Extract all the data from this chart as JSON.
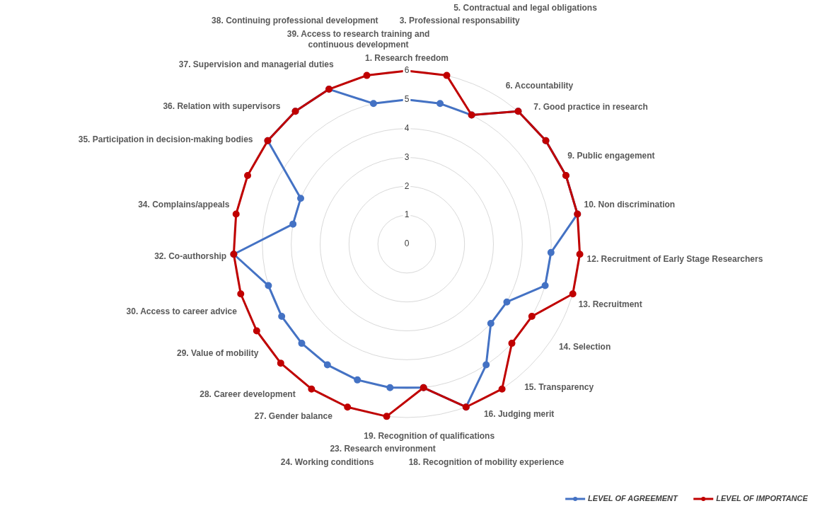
{
  "chart_data": {
    "type": "radar",
    "categories": [
      "1. Research freedom",
      "3. Professional responsability",
      "5. Contractual and legal obligations",
      "6. Accountability",
      "7. Good practice in research",
      "9. Public engagement",
      "10. Non discrimination",
      "12. Recruitment of Early Stage Researchers",
      "13. Recruitment",
      "14. Selection",
      "15. Transparency",
      "16. Judging merit",
      "18. Recognition of mobility experience",
      "19. Recognition of qualifications",
      "23. Research environment",
      "24. Working conditions",
      "27. Gender balance",
      "28. Career development",
      "29. Value of mobility",
      "30. Access to career advice",
      "32. Co-authorship",
      "34. Complains/appeals",
      "35. Participation in decision-making bodies",
      "36. Relation with supervisors",
      "37. Supervision and managerial duties",
      "38. Continuing professional development",
      "39. Access to research training and continuous development"
    ],
    "series": [
      {
        "name": "LEVEL OF AGREEMENT",
        "color": "#4472c4",
        "values": [
          5,
          5,
          5,
          6,
          6,
          6,
          6,
          5,
          5,
          4,
          4,
          5,
          6,
          5,
          5,
          5,
          5,
          5,
          5,
          5,
          6,
          4,
          4,
          6,
          6,
          6,
          5
        ]
      },
      {
        "name": "LEVEL OF IMPORTANCE",
        "color": "#c00000",
        "values": [
          6,
          6,
          5,
          6,
          6,
          6,
          6,
          6,
          6,
          5,
          5,
          6,
          6,
          5,
          6,
          6,
          6,
          6,
          6,
          6,
          6,
          6,
          6,
          6,
          6,
          6,
          6
        ]
      }
    ],
    "ylim": [
      0,
      6
    ],
    "yticks": [
      0,
      1,
      2,
      3,
      4,
      5,
      6
    ],
    "grid": true,
    "legend": "bottom right",
    "marker": "circle"
  }
}
